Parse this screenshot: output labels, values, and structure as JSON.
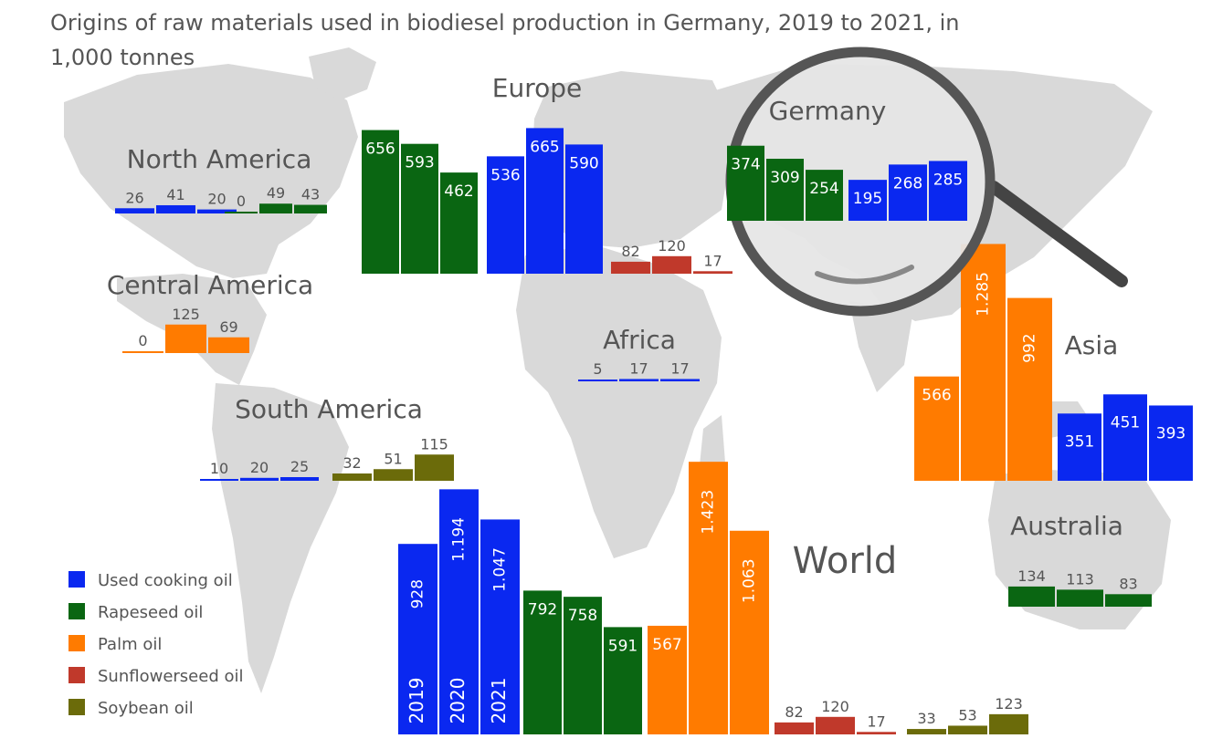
{
  "title": "Origins of raw materials used in biodiesel production in Germany, 2019 to 2021, in 1,000 tonnes",
  "colors": {
    "Used cooking oil": "#0a28f0",
    "Rapeseed oil": "#0a6612",
    "Palm oil": "#ff7b00",
    "Sunflowerseed oil": "#c0392b",
    "Soybean oil": "#6b6b0a",
    "map": "#d9d9d9",
    "magnifier": "#555555"
  },
  "legend": [
    "Used cooking oil",
    "Rapeseed oil",
    "Palm oil",
    "Sunflowerseed oil",
    "Soybean oil"
  ],
  "chart_data": {
    "type": "bar",
    "title": "Origins of raw materials used in biodiesel production in Germany, 2019 to 2021, in 1,000 tonnes",
    "categories": [
      "2019",
      "2020",
      "2021"
    ],
    "regions": [
      {
        "name": "North America",
        "series": [
          {
            "name": "Used cooking oil",
            "values": [
              26,
              41,
              20
            ]
          },
          {
            "name": "Rapeseed oil",
            "values": [
              0,
              49,
              43
            ]
          }
        ]
      },
      {
        "name": "Europe",
        "series": [
          {
            "name": "Rapeseed oil",
            "values": [
              656,
              593,
              462
            ]
          },
          {
            "name": "Used cooking oil",
            "values": [
              536,
              665,
              590
            ]
          },
          {
            "name": "Sunflowerseed oil",
            "values": [
              82,
              120,
              17
            ]
          }
        ]
      },
      {
        "name": "Germany",
        "series": [
          {
            "name": "Rapeseed oil",
            "values": [
              374,
              309,
              254
            ]
          },
          {
            "name": "Used cooking oil",
            "values": [
              195,
              268,
              285
            ]
          }
        ]
      },
      {
        "name": "Central America",
        "series": [
          {
            "name": "Palm oil",
            "values": [
              0,
              125,
              69
            ]
          }
        ]
      },
      {
        "name": "Africa",
        "series": [
          {
            "name": "Used cooking oil",
            "values": [
              5,
              17,
              17
            ]
          }
        ]
      },
      {
        "name": "Asia",
        "series": [
          {
            "name": "Palm oil",
            "values": [
              566,
              1285,
              992
            ]
          },
          {
            "name": "Used cooking oil",
            "values": [
              351,
              451,
              393
            ]
          }
        ]
      },
      {
        "name": "South America",
        "series": [
          {
            "name": "Used cooking oil",
            "values": [
              10,
              20,
              25
            ]
          },
          {
            "name": "Soybean oil",
            "values": [
              32,
              51,
              115
            ]
          }
        ]
      },
      {
        "name": "Australia",
        "series": [
          {
            "name": "Rapeseed oil",
            "values": [
              134,
              113,
              83
            ]
          }
        ]
      },
      {
        "name": "World",
        "series": [
          {
            "name": "Used cooking oil",
            "values": [
              928,
              1194,
              1047
            ]
          },
          {
            "name": "Rapeseed oil",
            "values": [
              792,
              758,
              591
            ]
          },
          {
            "name": "Palm oil",
            "values": [
              567,
              1423,
              1063
            ]
          },
          {
            "name": "Sunflowerseed oil",
            "values": [
              82,
              120,
              17
            ]
          },
          {
            "name": "Soybean oil",
            "values": [
              33,
              53,
              123
            ]
          }
        ]
      }
    ],
    "value_labels": {
      "North America": [
        [
          "26",
          "41",
          "20"
        ],
        [
          "0",
          "49",
          "43"
        ]
      ],
      "Europe": [
        [
          "656",
          "593",
          "462"
        ],
        [
          "536",
          "665",
          "590"
        ],
        [
          "82",
          "120",
          "17"
        ]
      ],
      "Germany": [
        [
          "374",
          "309",
          "254"
        ],
        [
          "195",
          "268",
          "285"
        ]
      ],
      "Central America": [
        [
          "0",
          "125",
          "69"
        ]
      ],
      "Africa": [
        [
          "5",
          "17",
          "17"
        ]
      ],
      "Asia": [
        [
          "566",
          "1.285",
          "992"
        ],
        [
          "351",
          "451",
          "393"
        ]
      ],
      "South America": [
        [
          "10",
          "20",
          "25"
        ],
        [
          "32",
          "51",
          "115"
        ]
      ],
      "Australia": [
        [
          "134",
          "113",
          "83"
        ]
      ],
      "World": [
        [
          "928",
          "1.194",
          "1.047"
        ],
        [
          "792",
          "758",
          "591"
        ],
        [
          "567",
          "1.423",
          "1.063"
        ],
        [
          "82",
          "120",
          "17"
        ],
        [
          "33",
          "53",
          "123"
        ]
      ]
    },
    "legend_placement": "bottom-left"
  }
}
